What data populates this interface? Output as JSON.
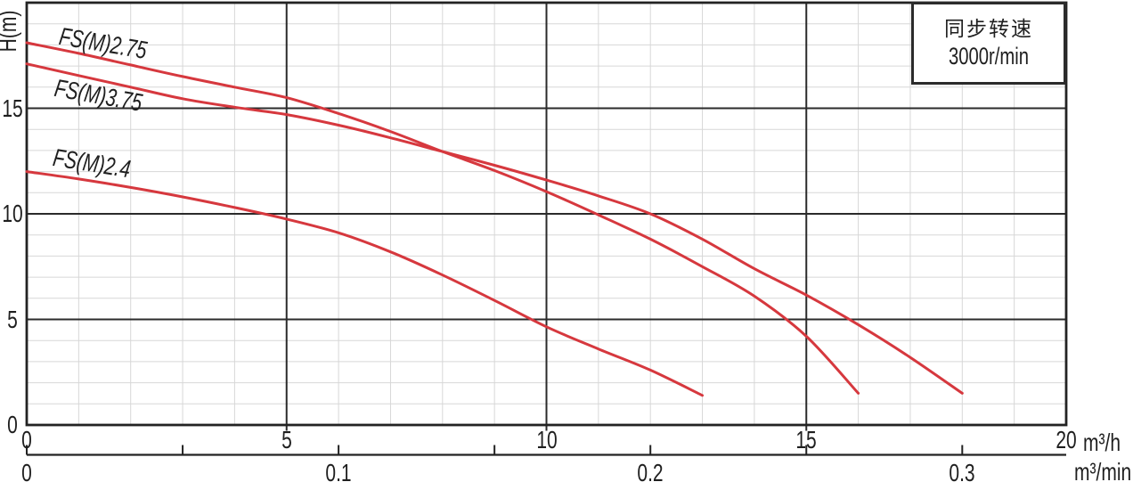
{
  "speed_box": {
    "line1": "同步转速",
    "line2": "3000r/min"
  },
  "y_axis": {
    "title": "H(m)",
    "tick_labels": [
      "0",
      "5",
      "10",
      "15"
    ]
  },
  "x_axis_h": {
    "unit": "m³/h",
    "tick_labels": [
      "0",
      "5",
      "10",
      "15",
      "20"
    ]
  },
  "x_axis_min": {
    "unit": "m³/min",
    "tick_labels": [
      "0",
      "0.1",
      "0.2",
      "0.3"
    ]
  },
  "colors": {
    "curve": "#d6383e",
    "major_grid": "#2b2b2b",
    "minor_grid": "#d7d7d7",
    "border": "#232323",
    "text": "#1f1f1f"
  },
  "chart_data": {
    "type": "line",
    "title": "",
    "ylabel": "H(m)",
    "xlabel": "m³/h",
    "x2label": "m³/min",
    "xlim": [
      0,
      20
    ],
    "ylim": [
      0,
      20
    ],
    "x2lim": [
      0,
      0.3333
    ],
    "grid": "minor grid every 1 m³/h and 1 m; dark major lines at 5, 10, 15 on both axes",
    "y_major_ticks": [
      5,
      10,
      15
    ],
    "x_major_ticks": [
      5,
      10,
      15
    ],
    "x2_minor_ticks": [
      0,
      0.05,
      0.1,
      0.15,
      0.2,
      0.25,
      0.3
    ],
    "legend_position": "labels written along curves at upper left",
    "annotation": "同步转速 3000r/min",
    "series": [
      {
        "name": "FS(M)2.75",
        "points": [
          [
            0,
            18.1
          ],
          [
            1,
            17.6
          ],
          [
            2,
            17.05
          ],
          [
            3,
            16.5
          ],
          [
            4,
            16.0
          ],
          [
            5,
            15.5
          ],
          [
            6,
            14.75
          ],
          [
            7,
            13.9
          ],
          [
            8,
            12.95
          ],
          [
            9,
            12.05
          ],
          [
            10,
            11.05
          ],
          [
            11,
            9.95
          ],
          [
            12,
            8.8
          ],
          [
            13,
            7.5
          ],
          [
            14,
            6.1
          ],
          [
            15,
            4.2
          ],
          [
            16,
            1.5
          ]
        ]
      },
      {
        "name": "FS(M)3.75",
        "points": [
          [
            0,
            17.1
          ],
          [
            1,
            16.55
          ],
          [
            2,
            16.0
          ],
          [
            3,
            15.45
          ],
          [
            4,
            15.05
          ],
          [
            5,
            14.7
          ],
          [
            6,
            14.2
          ],
          [
            7,
            13.6
          ],
          [
            8,
            12.95
          ],
          [
            9,
            12.3
          ],
          [
            10,
            11.6
          ],
          [
            11,
            10.85
          ],
          [
            12,
            10.0
          ],
          [
            13,
            8.8
          ],
          [
            14,
            7.4
          ],
          [
            15,
            6.15
          ],
          [
            16,
            4.75
          ],
          [
            17,
            3.2
          ],
          [
            18,
            1.5
          ]
        ]
      },
      {
        "name": "FS(M)2.4",
        "points": [
          [
            0,
            12.0
          ],
          [
            1,
            11.65
          ],
          [
            2,
            11.25
          ],
          [
            3,
            10.8
          ],
          [
            4,
            10.3
          ],
          [
            5,
            9.75
          ],
          [
            6,
            9.1
          ],
          [
            7,
            8.2
          ],
          [
            8,
            7.1
          ],
          [
            9,
            5.9
          ],
          [
            10,
            4.65
          ],
          [
            11,
            3.6
          ],
          [
            12,
            2.6
          ],
          [
            13,
            1.4
          ]
        ]
      }
    ]
  }
}
